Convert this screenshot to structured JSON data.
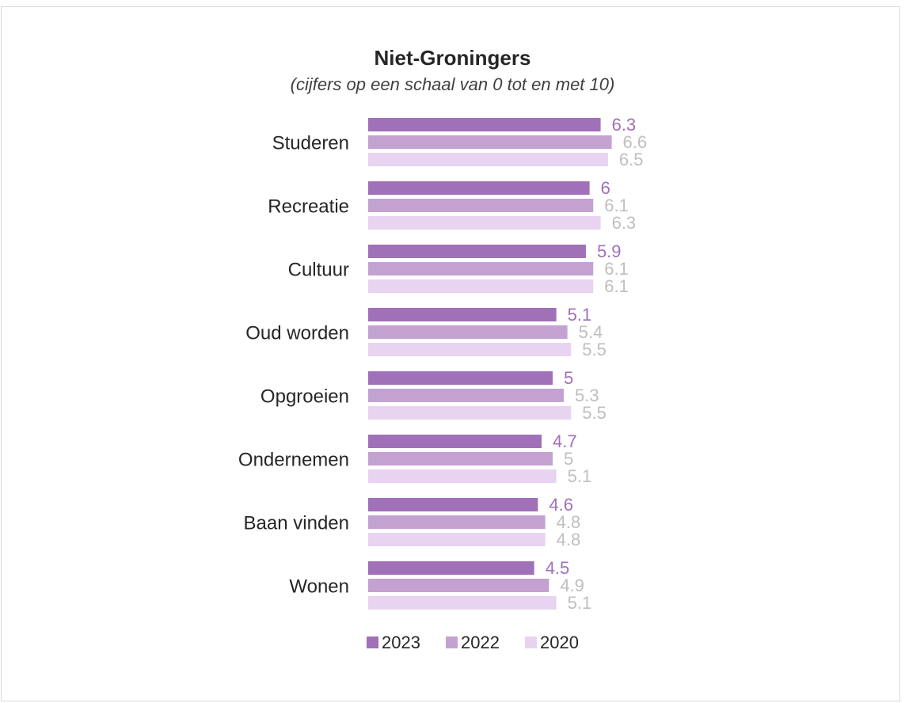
{
  "chart_data": {
    "type": "bar",
    "orientation": "horizontal",
    "title": "Niet-Groningers",
    "subtitle": "(cijfers op een schaal van 0 tot en met 10)",
    "categories": [
      "Studeren",
      "Recreatie",
      "Cultuur",
      "Oud worden",
      "Opgroeien",
      "Ondernemen",
      "Baan vinden",
      "Wonen"
    ],
    "series": [
      {
        "name": "2023",
        "color": "#a070b8",
        "label_color": "#a070b8",
        "values": [
          6.3,
          6,
          5.9,
          5.1,
          5,
          4.7,
          4.6,
          4.5
        ]
      },
      {
        "name": "2022",
        "color": "#c3a2d1",
        "label_color": "#bfbfbf",
        "values": [
          6.6,
          6.1,
          6.1,
          5.4,
          5.3,
          5,
          4.8,
          4.9
        ]
      },
      {
        "name": "2020",
        "color": "#e8d3f0",
        "label_color": "#bfbfbf",
        "values": [
          6.5,
          6.3,
          6.1,
          5.5,
          5.5,
          5.1,
          4.8,
          5.1
        ]
      }
    ],
    "xlim": [
      0,
      10
    ],
    "grid": false,
    "legend_position": "bottom"
  }
}
